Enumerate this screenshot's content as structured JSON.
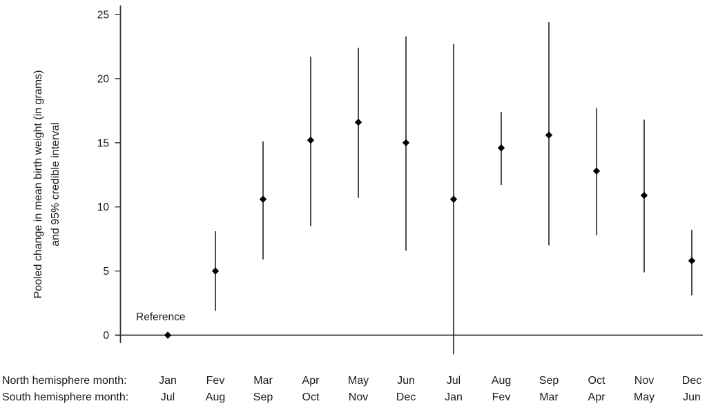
{
  "chart_data": {
    "type": "scatter",
    "subtype": "point-estimate-with-error-bars",
    "title": "",
    "ylabel_line1": "Pooled change in mean birth weight (in grams)",
    "ylabel_line2": "and 95% credible interval",
    "xlabel": "",
    "ylim": [
      0,
      25
    ],
    "yticks": [
      0,
      5,
      10,
      15,
      20,
      25
    ],
    "grid": false,
    "legend": "none",
    "reference_label": "Reference",
    "x_axis_rows": [
      {
        "label": "North hemisphere month:",
        "months": [
          "Jan",
          "Fev",
          "Mar",
          "Apr",
          "May",
          "Jun",
          "Jul",
          "Aug",
          "Sep",
          "Oct",
          "Nov",
          "Dec"
        ]
      },
      {
        "label": "South hemisphere month:",
        "months": [
          "Jul",
          "Aug",
          "Sep",
          "Oct",
          "Nov",
          "Dec",
          "Jan",
          "Fev",
          "Mar",
          "Apr",
          "May",
          "Jun"
        ]
      }
    ],
    "points": [
      {
        "north_month": "Jan",
        "south_month": "Jul",
        "mean": 0,
        "ci_low": null,
        "ci_high": null,
        "reference": true
      },
      {
        "north_month": "Fev",
        "south_month": "Aug",
        "mean": 5.0,
        "ci_low": 1.9,
        "ci_high": 8.1
      },
      {
        "north_month": "Mar",
        "south_month": "Sep",
        "mean": 10.6,
        "ci_low": 5.9,
        "ci_high": 15.1
      },
      {
        "north_month": "Apr",
        "south_month": "Oct",
        "mean": 15.2,
        "ci_low": 8.5,
        "ci_high": 21.7
      },
      {
        "north_month": "May",
        "south_month": "Nov",
        "mean": 16.6,
        "ci_low": 10.7,
        "ci_high": 22.4
      },
      {
        "north_month": "Jun",
        "south_month": "Dec",
        "mean": 15.0,
        "ci_low": 6.6,
        "ci_high": 23.3
      },
      {
        "north_month": "Jul",
        "south_month": "Jan",
        "mean": 10.6,
        "ci_low": -1.5,
        "ci_high": 22.7
      },
      {
        "north_month": "Aug",
        "south_month": "Fev",
        "mean": 14.6,
        "ci_low": 11.7,
        "ci_high": 17.4
      },
      {
        "north_month": "Sep",
        "south_month": "Mar",
        "mean": 15.6,
        "ci_low": 7.0,
        "ci_high": 24.4
      },
      {
        "north_month": "Oct",
        "south_month": "Apr",
        "mean": 12.8,
        "ci_low": 7.8,
        "ci_high": 17.7
      },
      {
        "north_month": "Nov",
        "south_month": "May",
        "mean": 10.9,
        "ci_low": 4.9,
        "ci_high": 16.8
      },
      {
        "north_month": "Dec",
        "south_month": "Jun",
        "mean": 5.8,
        "ci_low": 3.1,
        "ci_high": 8.2
      }
    ],
    "colors": {
      "axis": "#333333",
      "interval_bar": "#1f1f1f",
      "marker": "#000000",
      "text": "#1a1a1a",
      "background": "#ffffff"
    }
  }
}
